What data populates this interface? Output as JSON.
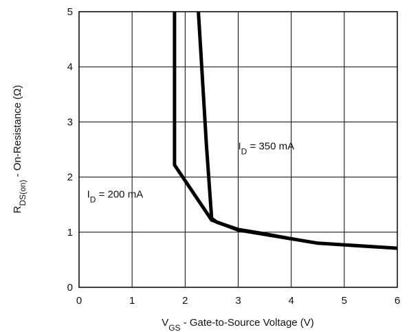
{
  "chart_data": {
    "type": "line",
    "title": "",
    "xlabel": {
      "main": "V",
      "sub": "GS",
      "rest": " - Gate-to-Source Voltage (V)"
    },
    "ylabel": {
      "main": "R",
      "sub": "DS(on)",
      "rest": " - On-Resistance (Ω)"
    },
    "xlim": [
      0,
      6
    ],
    "ylim": [
      0,
      5
    ],
    "x_ticks": [
      0,
      1,
      2,
      3,
      4,
      5,
      6
    ],
    "y_ticks": [
      0,
      1,
      2,
      3,
      4,
      5
    ],
    "grid": true,
    "series": [
      {
        "name": "",
        "x": [
          1.8,
          1.8,
          2.5,
          3.0,
          4.0,
          4.5,
          6.0
        ],
        "y": [
          5.0,
          2.22,
          1.22,
          1.04,
          0.88,
          0.8,
          0.71
        ]
      },
      {
        "name": "",
        "x": [
          2.25,
          2.3,
          2.4,
          2.5,
          2.6,
          3.0,
          3.5,
          4.0
        ],
        "y": [
          5.0,
          4.2,
          2.6,
          1.25,
          1.18,
          1.05,
          0.97,
          0.88
        ]
      }
    ],
    "annotations": [
      {
        "main": "I",
        "sub": "D",
        "rest": " =  350 mA",
        "x": 3.0,
        "y": 2.5
      },
      {
        "main": "I",
        "sub": "D",
        "rest": " =  200 mA",
        "x": 0.15,
        "y": 1.63
      }
    ]
  }
}
